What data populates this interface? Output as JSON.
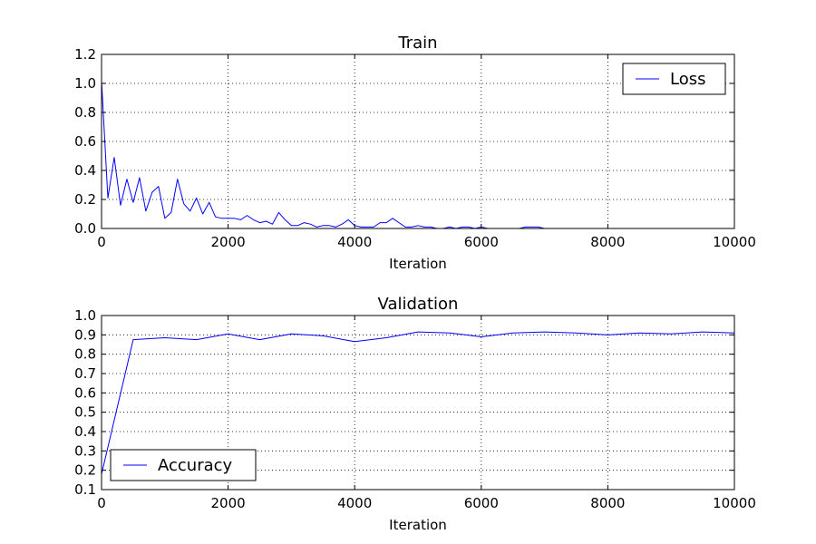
{
  "chart_data": [
    {
      "type": "line",
      "title": "Train",
      "xlabel": "Iteration",
      "ylabel": "",
      "xlim": [
        0,
        10000
      ],
      "ylim": [
        0.0,
        1.2
      ],
      "xticks": [
        0,
        2000,
        4000,
        6000,
        8000,
        10000
      ],
      "yticks": [
        0.0,
        0.2,
        0.4,
        0.6,
        0.8,
        1.0,
        1.2
      ],
      "xtick_labels": [
        "0",
        "2000",
        "4000",
        "6000",
        "8000",
        "10000"
      ],
      "ytick_labels": [
        "0.0",
        "0.2",
        "0.4",
        "0.6",
        "0.8",
        "1.0",
        "1.2"
      ],
      "grid": true,
      "legend": "top-right",
      "series": [
        {
          "name": "Loss",
          "color": "#0000ff",
          "x": [
            0,
            100,
            200,
            300,
            400,
            500,
            600,
            700,
            800,
            900,
            1000,
            1100,
            1200,
            1300,
            1400,
            1500,
            1600,
            1700,
            1800,
            1900,
            2000,
            2100,
            2200,
            2300,
            2400,
            2500,
            2600,
            2700,
            2800,
            2900,
            3000,
            3100,
            3200,
            3300,
            3400,
            3500,
            3600,
            3700,
            3800,
            3900,
            4000,
            4100,
            4200,
            4300,
            4400,
            4500,
            4600,
            4700,
            4800,
            4900,
            5000,
            5100,
            5200,
            5300,
            5400,
            5500,
            5600,
            5700,
            5800,
            5900,
            6000,
            6100,
            6200,
            6300,
            6400,
            6500,
            6600,
            6700,
            6800,
            6900,
            7000,
            7100,
            7200,
            7300,
            7400,
            7500,
            7600,
            7700,
            7800,
            7900,
            8000,
            8100,
            8200,
            8300,
            8400,
            8500,
            8600,
            8700,
            8800,
            8900,
            9000,
            9100,
            9200,
            9300,
            9400,
            9500,
            9600,
            9700,
            9800,
            9900,
            10000
          ],
          "values": [
            1.02,
            0.21,
            0.49,
            0.16,
            0.34,
            0.18,
            0.35,
            0.12,
            0.25,
            0.29,
            0.07,
            0.11,
            0.34,
            0.17,
            0.12,
            0.21,
            0.1,
            0.18,
            0.08,
            0.07,
            0.07,
            0.07,
            0.06,
            0.09,
            0.06,
            0.04,
            0.05,
            0.03,
            0.11,
            0.06,
            0.02,
            0.02,
            0.04,
            0.03,
            0.01,
            0.02,
            0.02,
            0.01,
            0.03,
            0.06,
            0.02,
            0.01,
            0.01,
            0.01,
            0.04,
            0.04,
            0.07,
            0.04,
            0.01,
            0.01,
            0.02,
            0.01,
            0.01,
            0.0,
            0.0,
            0.01,
            0.0,
            0.01,
            0.01,
            0.0,
            0.01,
            0.0,
            0.0,
            0.0,
            0.0,
            0.0,
            0.0,
            0.01,
            0.01,
            0.01,
            0.0,
            0.0,
            0.0,
            0.0,
            0.0,
            0.0,
            0.0,
            0.0,
            0.0,
            0.0,
            0.0,
            0.0,
            0.0,
            0.0,
            0.0,
            0.0,
            0.0,
            0.0,
            0.0,
            0.0,
            0.0,
            0.0,
            0.0,
            0.0,
            0.0,
            0.0,
            0.0,
            0.0,
            0.0,
            0.0,
            0.0
          ]
        }
      ]
    },
    {
      "type": "line",
      "title": "Validation",
      "xlabel": "Iteration",
      "ylabel": "",
      "xlim": [
        0,
        10000
      ],
      "ylim": [
        0.1,
        1.0
      ],
      "xticks": [
        0,
        2000,
        4000,
        6000,
        8000,
        10000
      ],
      "yticks": [
        0.1,
        0.2,
        0.3,
        0.4,
        0.5,
        0.6,
        0.7,
        0.8,
        0.9,
        1.0
      ],
      "xtick_labels": [
        "0",
        "2000",
        "4000",
        "6000",
        "8000",
        "10000"
      ],
      "ytick_labels": [
        "0.1",
        "0.2",
        "0.3",
        "0.4",
        "0.5",
        "0.6",
        "0.7",
        "0.8",
        "0.9",
        "1.0"
      ],
      "grid": true,
      "legend": "bottom-left",
      "series": [
        {
          "name": "Accuracy",
          "color": "#0000ff",
          "x": [
            0,
            500,
            1000,
            1500,
            2000,
            2500,
            3000,
            3500,
            4000,
            4500,
            5000,
            5500,
            6000,
            6500,
            7000,
            7500,
            8000,
            8500,
            9000,
            9500,
            10000
          ],
          "values": [
            0.18,
            0.875,
            0.885,
            0.875,
            0.905,
            0.875,
            0.905,
            0.895,
            0.865,
            0.885,
            0.915,
            0.91,
            0.89,
            0.91,
            0.915,
            0.91,
            0.9,
            0.91,
            0.905,
            0.915,
            0.91
          ]
        }
      ]
    }
  ]
}
